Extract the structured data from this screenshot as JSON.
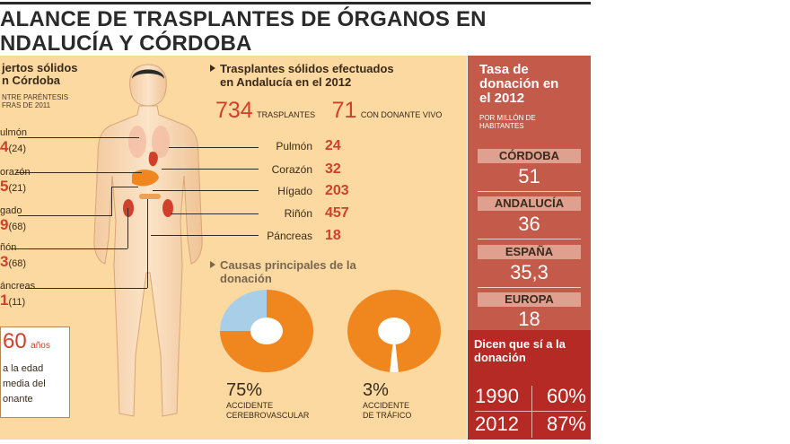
{
  "title": {
    "line1": "ALANCE DE TRASPLANTES DE ÓRGANOS EN",
    "line2": "NDALUCÍA Y CÓRDOBA"
  },
  "left": {
    "heading_line1": "jertos sólidos",
    "heading_line2": "n Córdoba",
    "note_line1": "NTRE PARÉNTESIS",
    "note_line2": "FRAS DE 2011",
    "organs": [
      {
        "name": "ulmón",
        "value": "4",
        "prev": "(24)"
      },
      {
        "name": "orazón",
        "value": "5",
        "prev": "(21)"
      },
      {
        "name": "gado",
        "value": "9",
        "prev": "(68)"
      },
      {
        "name": "ñón",
        "value": "3",
        "prev": "(68)"
      },
      {
        "name": "áncreas",
        "value": "1",
        "prev": "(11)"
      }
    ]
  },
  "age": {
    "number": "60",
    "unit": "años",
    "line1": "a la edad",
    "line2": "media del",
    "line3": "onante"
  },
  "andalucia": {
    "heading_line1": "Trasplantes sólidos efectuados",
    "heading_line2": "en Andalucía en el 2012",
    "total": "734",
    "total_unit": "TRASPLANTES",
    "living": "71",
    "living_unit": "CON DONANTE VIVO",
    "organs": [
      {
        "name": "Pulmón",
        "value": "24"
      },
      {
        "name": "Corazón",
        "value": "32"
      },
      {
        "name": "Hígado",
        "value": "203"
      },
      {
        "name": "Riñón",
        "value": "457"
      },
      {
        "name": "Páncreas",
        "value": "18"
      }
    ]
  },
  "causes": {
    "heading_line1": "Causas principales de la",
    "heading_line2": "donación",
    "items": [
      {
        "pct": "75%",
        "pct_value": 75,
        "cap1": "ACCIDENTE",
        "cap2": "CEREBROVASCULAR"
      },
      {
        "pct": "3%",
        "pct_value": 3,
        "cap1": "ACCIDENTE",
        "cap2": "DE TRÁFICO"
      }
    ]
  },
  "rate": {
    "title_line1": "Tasa de",
    "title_line2": "donación en",
    "title_line3": "el 2012",
    "sub_line1": "POR MILLÓN DE",
    "sub_line2": "HABITANTES",
    "items": [
      {
        "label": "CÓRDOBA",
        "value": "51"
      },
      {
        "label": "ANDALUCÍA",
        "value": "36"
      },
      {
        "label": "ESPAÑA",
        "value": "35,3"
      },
      {
        "label": "EUROPA",
        "value": "18"
      }
    ],
    "dicen_line1": "Dicen que sí a la",
    "dicen_line2": "donación",
    "years": [
      {
        "year": "1990",
        "pct": "60%"
      },
      {
        "year": "2012",
        "pct": "87%"
      }
    ]
  },
  "colors": {
    "panel": "#fbd9a0",
    "accent_orange": "#f0861e",
    "accent_blue": "#a9cfe8",
    "red_value": "#d1402a",
    "rate_panel": "#c45a4a",
    "rate_dark": "#b52a25"
  }
}
